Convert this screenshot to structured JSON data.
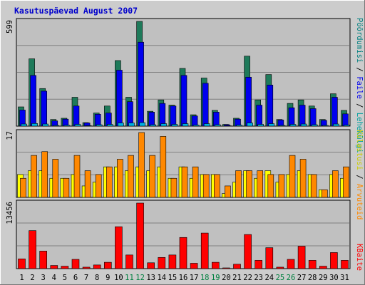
{
  "title": "Kasutuspäevad August 2007",
  "colors": {
    "frame_bg": "#cccccc",
    "plot_bg": "#c0c0c0",
    "title": "#0000cc",
    "files": "#008080",
    "hits": "#1e7a5a",
    "pages": "#0000ee",
    "visits": "#ffff00",
    "sites": "#ff8800",
    "kbytes": "#ff0000",
    "weekend_label": "#008040"
  },
  "right_labels": {
    "top": [
      {
        "text": "Pöördumisi",
        "color": "#008080"
      },
      {
        "text": " / ",
        "color": "#000000"
      },
      {
        "text": "Faile",
        "color": "#0000ee"
      },
      {
        "text": " / ",
        "color": "#000000"
      },
      {
        "text": "Lehekülgi",
        "color": "#00a0a0"
      }
    ],
    "middle": [
      {
        "text": "Külastusi",
        "color": "#cccc00"
      },
      {
        "text": " / ",
        "color": "#000000"
      },
      {
        "text": "Arvuteid",
        "color": "#ff8800"
      }
    ],
    "bottom": [
      {
        "text": "KBaite",
        "color": "#ff0000"
      }
    ]
  },
  "chart_data": [
    {
      "type": "bar",
      "panel": "hits_files_pages",
      "ymax_label": "599",
      "ylim": [
        0,
        599
      ],
      "categories": [
        "1",
        "2",
        "3",
        "4",
        "5",
        "6",
        "7",
        "8",
        "9",
        "10",
        "11",
        "12",
        "13",
        "14",
        "15",
        "16",
        "17",
        "18",
        "19",
        "20",
        "21",
        "22",
        "23",
        "24",
        "25",
        "26",
        "27",
        "28",
        "29",
        "30",
        "31"
      ],
      "weekend_days": [
        "11",
        "12",
        "18",
        "19",
        "25",
        "26"
      ],
      "series": [
        {
          "name": "Pöördumisi",
          "values": [
            110,
            385,
            215,
            38,
            45,
            165,
            20,
            75,
            115,
            375,
            165,
            599,
            85,
            150,
            120,
            330,
            65,
            275,
            90,
            10,
            45,
            400,
            150,
            295,
            38,
            130,
            150,
            115,
            38,
            185,
            90
          ]
        },
        {
          "name": "Faile",
          "values": [
            92,
            290,
            200,
            30,
            40,
            115,
            18,
            68,
            75,
            320,
            140,
            480,
            80,
            130,
            115,
            290,
            58,
            245,
            80,
            8,
            40,
            280,
            120,
            235,
            35,
            105,
            120,
            100,
            33,
            165,
            70
          ]
        },
        {
          "name": "Lehekülgi",
          "values": [
            12,
            15,
            12,
            4,
            5,
            10,
            3,
            8,
            10,
            18,
            18,
            20,
            8,
            14,
            10,
            14,
            6,
            14,
            8,
            2,
            6,
            18,
            10,
            14,
            4,
            10,
            12,
            8,
            4,
            12,
            6
          ]
        }
      ]
    },
    {
      "type": "bar",
      "panel": "visits_sites",
      "ymax_label": "17",
      "ylim": [
        0,
        17
      ],
      "categories": [
        "1",
        "2",
        "3",
        "4",
        "5",
        "6",
        "7",
        "8",
        "9",
        "10",
        "11",
        "12",
        "13",
        "14",
        "15",
        "16",
        "17",
        "18",
        "19",
        "20",
        "21",
        "22",
        "23",
        "24",
        "25",
        "26",
        "27",
        "28",
        "29",
        "30",
        "31"
      ],
      "series": [
        {
          "name": "Külastusi",
          "values": [
            6,
            7,
            7,
            5,
            5,
            6,
            3,
            4,
            8,
            8,
            7,
            8,
            7,
            8,
            5,
            8,
            5,
            6,
            6,
            1,
            4,
            7,
            5,
            7,
            4,
            6,
            7,
            6,
            2,
            6,
            5
          ]
        },
        {
          "name": "Arvuteid",
          "values": [
            5,
            11,
            12,
            10,
            5,
            11,
            7,
            6,
            8,
            10,
            11,
            17,
            11,
            16,
            5,
            8,
            8,
            6,
            6,
            3,
            7,
            7,
            7,
            6,
            6,
            11,
            10,
            6,
            2,
            7,
            8
          ]
        }
      ]
    },
    {
      "type": "bar",
      "panel": "kbytes",
      "ymax_label": "13456",
      "ylim": [
        0,
        13456
      ],
      "categories": [
        "1",
        "2",
        "3",
        "4",
        "5",
        "6",
        "7",
        "8",
        "9",
        "10",
        "11",
        "12",
        "13",
        "14",
        "15",
        "16",
        "17",
        "18",
        "19",
        "20",
        "21",
        "22",
        "23",
        "24",
        "25",
        "26",
        "27",
        "28",
        "29",
        "30",
        "31"
      ],
      "series": [
        {
          "name": "KBaite",
          "values": [
            2000,
            7800,
            3600,
            650,
            500,
            1900,
            300,
            750,
            1300,
            8600,
            2800,
            13456,
            1200,
            2300,
            2800,
            6400,
            1100,
            7300,
            1300,
            150,
            900,
            7000,
            1700,
            4300,
            300,
            1900,
            4600,
            1700,
            500,
            3300,
            1700
          ]
        }
      ]
    }
  ]
}
